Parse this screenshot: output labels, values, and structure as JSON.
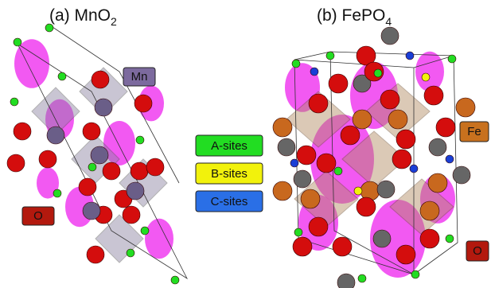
{
  "panels": [
    {
      "title": "(a) MnO",
      "title_sub": "2",
      "labels": [
        "Mn",
        "O"
      ]
    },
    {
      "title": "(b) FePO",
      "title_sub": "4",
      "labels": [
        "Fe",
        "O"
      ]
    }
  ],
  "legend": [
    "A-sites",
    "B-sites",
    "C-sites"
  ]
}
